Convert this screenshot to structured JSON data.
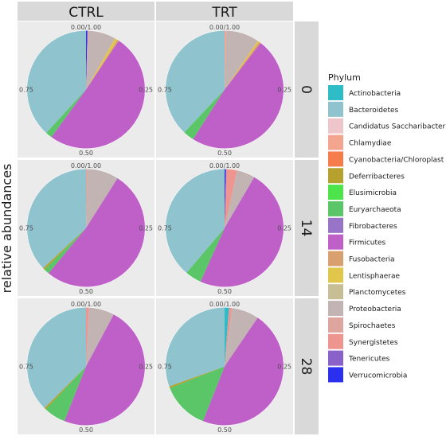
{
  "chart_data": {
    "type": "pie",
    "ylabel": "relative abundances",
    "facet_columns": [
      "CTRL",
      "TRT"
    ],
    "facet_rows": [
      "0",
      "14",
      "28"
    ],
    "angle_ticks": [
      "0.00/1.00",
      "0.25",
      "0.50",
      "0.75"
    ],
    "legend": {
      "title": "Phylum",
      "position": "right",
      "entries": [
        {
          "name": "Actinobacteria",
          "color": "#2EBCC6"
        },
        {
          "name": "Bacteroidetes",
          "color": "#8FC3CE"
        },
        {
          "name": "Candidatus Saccharibacteria",
          "color": "#EFC5CC"
        },
        {
          "name": "Chlamydiae",
          "color": "#F4A58F"
        },
        {
          "name": "Cyanobacteria/Chloroplast",
          "color": "#F77C4C"
        },
        {
          "name": "Deferribacteres",
          "color": "#B6A12F"
        },
        {
          "name": "Elusimicrobia",
          "color": "#4DE34A"
        },
        {
          "name": "Euryarchaeota",
          "color": "#5BC667"
        },
        {
          "name": "Fibrobacteres",
          "color": "#9774C8"
        },
        {
          "name": "Firmicutes",
          "color": "#BE60C8"
        },
        {
          "name": "Fusobacteria",
          "color": "#D9A06F"
        },
        {
          "name": "Lentisphaerae",
          "color": "#E1C64C"
        },
        {
          "name": "Planctomycetes",
          "color": "#C8BE95"
        },
        {
          "name": "Proteobacteria",
          "color": "#C2B4B2"
        },
        {
          "name": "Spirochaetes",
          "color": "#DEA49E"
        },
        {
          "name": "Synergistetes",
          "color": "#EE9590"
        },
        {
          "name": "Tenericutes",
          "color": "#8A61C8"
        },
        {
          "name": "Verrucomicrobia",
          "color": "#2B2FF0"
        }
      ]
    },
    "panels": [
      {
        "column": "CTRL",
        "row": "0",
        "slices": [
          {
            "phylum": "Verrucomicrobia",
            "value": 0.004
          },
          {
            "phylum": "Spirochaetes",
            "value": 0.004
          },
          {
            "phylum": "Proteobacteria",
            "value": 0.074
          },
          {
            "phylum": "Lentisphaerae",
            "value": 0.008
          },
          {
            "phylum": "Fusobacteria",
            "value": 0.004
          },
          {
            "phylum": "Firmicutes",
            "value": 0.506
          },
          {
            "phylum": "Euryarchaeota",
            "value": 0.018
          },
          {
            "phylum": "Bacteroidetes",
            "value": 0.382
          }
        ]
      },
      {
        "column": "TRT",
        "row": "0",
        "slices": [
          {
            "phylum": "Chlamydiae",
            "value": 0.005
          },
          {
            "phylum": "Proteobacteria",
            "value": 0.09
          },
          {
            "phylum": "Lentisphaerae",
            "value": 0.005
          },
          {
            "phylum": "Fusobacteria",
            "value": 0.005
          },
          {
            "phylum": "Firmicutes",
            "value": 0.485
          },
          {
            "phylum": "Euryarchaeota",
            "value": 0.03
          },
          {
            "phylum": "Bacteroidetes",
            "value": 0.38
          }
        ]
      },
      {
        "column": "CTRL",
        "row": "14",
        "slices": [
          {
            "phylum": "Spirochaetes",
            "value": 0.005
          },
          {
            "phylum": "Proteobacteria",
            "value": 0.085
          },
          {
            "phylum": "Firmicutes",
            "value": 0.52
          },
          {
            "phylum": "Euryarchaeota",
            "value": 0.015
          },
          {
            "phylum": "Deferribacteres",
            "value": 0.005
          },
          {
            "phylum": "Bacteroidetes",
            "value": 0.37
          }
        ]
      },
      {
        "column": "TRT",
        "row": "14",
        "slices": [
          {
            "phylum": "Verrucomicrobia",
            "value": 0.004
          },
          {
            "phylum": "Synergistetes",
            "value": 0.03
          },
          {
            "phylum": "Proteobacteria",
            "value": 0.05
          },
          {
            "phylum": "Firmicutes",
            "value": 0.483
          },
          {
            "phylum": "Euryarchaeota",
            "value": 0.045
          },
          {
            "phylum": "Bacteroidetes",
            "value": 0.388
          }
        ]
      },
      {
        "column": "CTRL",
        "row": "28",
        "slices": [
          {
            "phylum": "Synergistetes",
            "value": 0.008
          },
          {
            "phylum": "Proteobacteria",
            "value": 0.07
          },
          {
            "phylum": "Firmicutes",
            "value": 0.482
          },
          {
            "phylum": "Euryarchaeota",
            "value": 0.06
          },
          {
            "phylum": "Deferribacteres",
            "value": 0.005
          },
          {
            "phylum": "Bacteroidetes",
            "value": 0.375
          }
        ]
      },
      {
        "column": "TRT",
        "row": "28",
        "slices": [
          {
            "phylum": "Actinobacteria",
            "value": 0.012
          },
          {
            "phylum": "Synergistetes",
            "value": 0.008
          },
          {
            "phylum": "Proteobacteria",
            "value": 0.075
          },
          {
            "phylum": "Firmicutes",
            "value": 0.465
          },
          {
            "phylum": "Euryarchaeota",
            "value": 0.13
          },
          {
            "phylum": "Deferribacteres",
            "value": 0.005
          },
          {
            "phylum": "Bacteroidetes",
            "value": 0.305
          }
        ]
      }
    ]
  }
}
